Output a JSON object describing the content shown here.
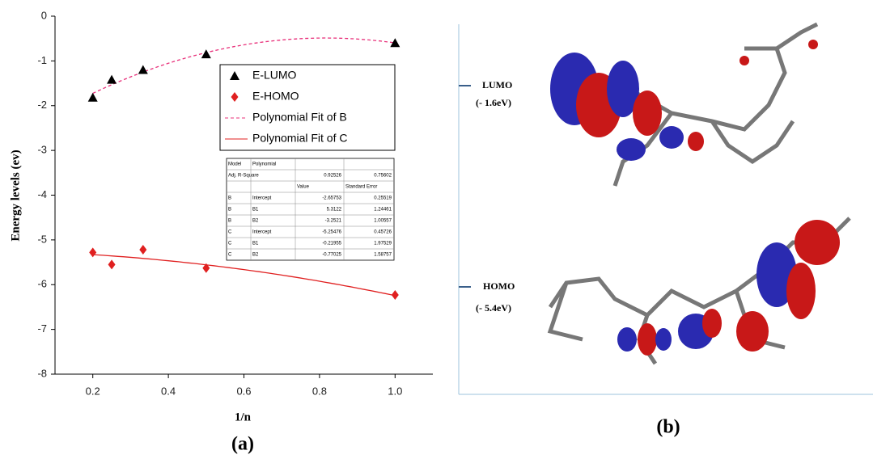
{
  "chart_data": {
    "type": "scatter",
    "panel_label": "(a)",
    "x_label": "1/n",
    "y_label": "Energy levels (ev)",
    "xlim": [
      0.1,
      1.1
    ],
    "ylim": [
      -8,
      0
    ],
    "xticks": [
      0.2,
      0.4,
      0.6,
      0.8,
      {
        "value": 1.0,
        "label": "1.0"
      }
    ],
    "yticks": [
      0,
      -1,
      -2,
      -3,
      -4,
      -5,
      -6,
      -7,
      -8
    ],
    "series": [
      {
        "name": "E-LUMO",
        "color": "#000000",
        "marker": "triangle",
        "x": [
          0.2,
          0.25,
          0.333,
          0.5,
          1.0
        ],
        "values": [
          -1.82,
          -1.42,
          -1.2,
          -0.85,
          -0.6
        ]
      },
      {
        "name": "E-HOMO",
        "color": "#e02020",
        "marker": "diamond",
        "x": [
          0.2,
          0.25,
          0.333,
          0.5,
          1.0
        ],
        "values": [
          -5.28,
          -5.55,
          -5.22,
          -5.63,
          -6.23
        ]
      }
    ],
    "fits": [
      {
        "name": "Polynomial Fit of B",
        "color": "#e8307a",
        "dashed": true
      },
      {
        "name": "Polynomial Fit of C",
        "color": "#e02020",
        "dashed": false
      }
    ],
    "fit_table": {
      "rows": [
        [
          "Model",
          "Polynomial",
          null,
          null
        ],
        [
          "Adj. R-Square",
          null,
          0.92526,
          0.75602
        ],
        [
          null,
          null,
          "Value",
          "Standard Error"
        ],
        [
          "B",
          "Intercept",
          -2.65753,
          0.25519
        ],
        [
          "B",
          "B1",
          5.3122,
          1.24461
        ],
        [
          "B",
          "B2",
          -3.2521,
          1.00557
        ],
        [
          "C",
          "Intercept",
          -5.25476,
          0.45726
        ],
        [
          "C",
          "B1",
          -0.21955,
          1.97529
        ],
        [
          "C",
          "B2",
          -0.77025,
          1.58757
        ]
      ]
    }
  },
  "orbitals": {
    "panel_label": "(b)",
    "levels": [
      {
        "name": "LUMO",
        "energy": "(- 1.6eV)"
      },
      {
        "name": "HOMO",
        "energy": "(- 5.4eV)"
      }
    ]
  }
}
